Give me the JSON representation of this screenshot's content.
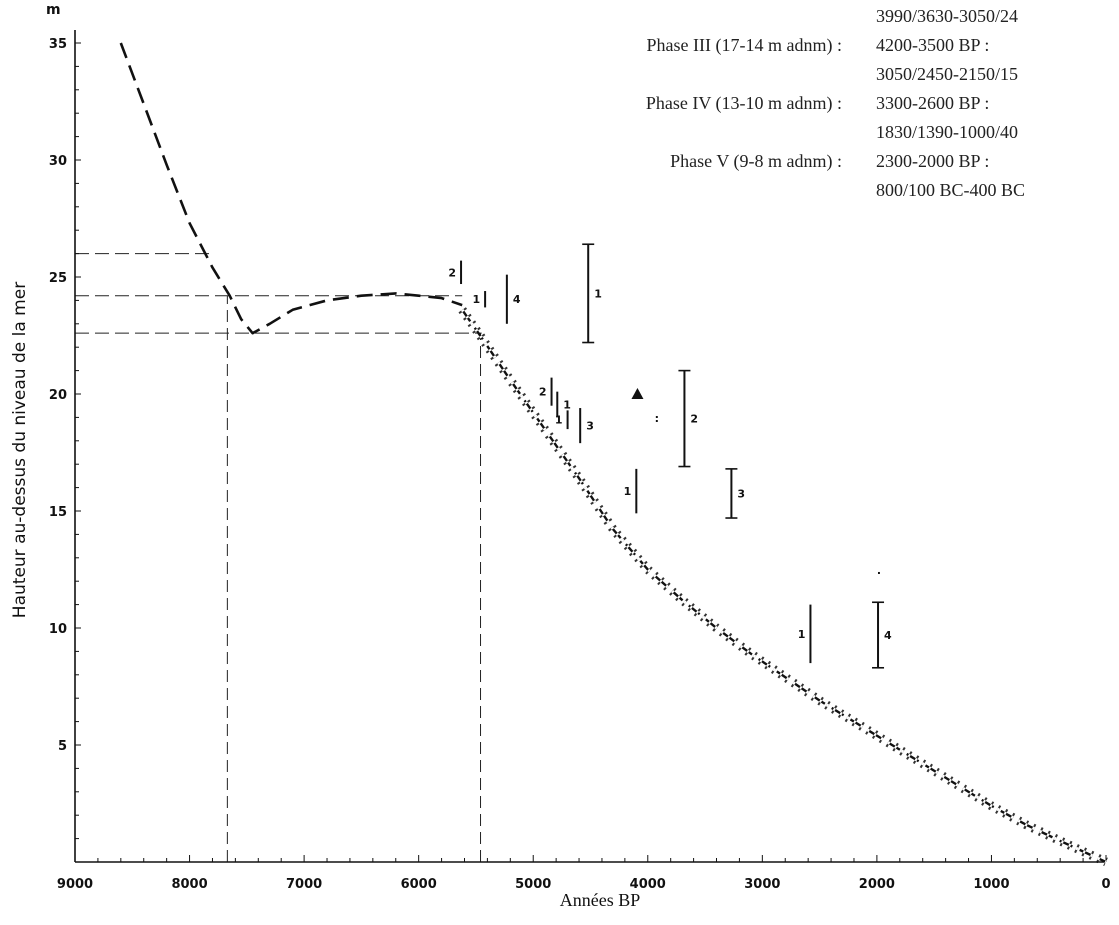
{
  "chart_data": {
    "type": "line",
    "title": "",
    "xlabel": "Années BP",
    "ylabel": "Hauteur au-dessus du niveau de la mer",
    "y_unit": "m",
    "xlim": [
      9000,
      0
    ],
    "ylim": [
      0,
      36
    ],
    "x_ticks": [
      9000,
      8000,
      7000,
      6000,
      5000,
      4000,
      3000,
      2000,
      1000,
      0
    ],
    "y_ticks": [
      5,
      10,
      15,
      20,
      25,
      30,
      35
    ],
    "grid": false,
    "series": [
      {
        "style": "dashed",
        "points": [
          [
            8600,
            35
          ],
          [
            8400,
            32.4
          ],
          [
            8200,
            29.8
          ],
          [
            8000,
            27.3
          ],
          [
            7800,
            25.4
          ],
          [
            7650,
            24.2
          ],
          [
            7550,
            23.2
          ],
          [
            7450,
            22.6
          ],
          [
            7300,
            23
          ],
          [
            7100,
            23.6
          ],
          [
            6800,
            24
          ],
          [
            6500,
            24.2
          ],
          [
            6200,
            24.3
          ],
          [
            6000,
            24.2
          ],
          [
            5800,
            24.1
          ],
          [
            5620,
            23.8
          ]
        ]
      },
      {
        "style": "hatched-band",
        "points": [
          [
            5620,
            23.6
          ],
          [
            5450,
            22.4
          ],
          [
            5200,
            20.6
          ],
          [
            4900,
            18.5
          ],
          [
            4600,
            16.4
          ],
          [
            4300,
            14.2
          ],
          [
            4000,
            12.5
          ],
          [
            3700,
            11.2
          ],
          [
            3400,
            10
          ],
          [
            3100,
            8.9
          ],
          [
            2800,
            7.9
          ],
          [
            2500,
            6.9
          ],
          [
            2200,
            6
          ],
          [
            1900,
            5.1
          ],
          [
            1600,
            4.2
          ],
          [
            1300,
            3.3
          ],
          [
            1000,
            2.4
          ],
          [
            700,
            1.6
          ],
          [
            400,
            0.9
          ],
          [
            0,
            0
          ]
        ]
      }
    ],
    "reference_lines": {
      "horizontal_dashed": [
        {
          "y": 26,
          "x_from": 9000,
          "x_to": 7800
        },
        {
          "y": 24.2,
          "x_from": 9000,
          "x_to": 5620
        },
        {
          "y": 22.6,
          "x_from": 9000,
          "x_to": 5450
        }
      ],
      "vertical_dashed": [
        {
          "x": 7670,
          "y_from": 0,
          "y_to": 24.2
        },
        {
          "x": 5460,
          "y_from": 0,
          "y_to": 22.6
        }
      ]
    },
    "range_markers": [
      {
        "label": "2",
        "x": 5630,
        "y_low": 24.7,
        "y_high": 25.7,
        "capped": false,
        "label_side": "left"
      },
      {
        "label": "1",
        "x": 5420,
        "y_low": 23.7,
        "y_high": 24.4,
        "capped": false,
        "label_side": "left"
      },
      {
        "label": "4",
        "x": 5230,
        "y_low": 23.0,
        "y_high": 25.1,
        "capped": false,
        "label_side": "right"
      },
      {
        "label": "1",
        "x": 4520,
        "y_low": 22.2,
        "y_high": 26.4,
        "capped": true,
        "label_side": "right"
      },
      {
        "label": "2",
        "x": 4840,
        "y_low": 19.5,
        "y_high": 20.7,
        "capped": false,
        "label_side": "left"
      },
      {
        "label": "1",
        "x": 4790,
        "y_low": 19.0,
        "y_high": 20.1,
        "capped": false,
        "label_side": "right"
      },
      {
        "label": "1",
        "x": 4700,
        "y_low": 18.5,
        "y_high": 19.3,
        "capped": false,
        "label_side": "left"
      },
      {
        "label": "3",
        "x": 4590,
        "y_low": 17.9,
        "y_high": 19.4,
        "capped": false,
        "label_side": "right"
      },
      {
        "label": "2",
        "x": 3680,
        "y_low": 16.9,
        "y_high": 21.0,
        "capped": true,
        "label_side": "right"
      },
      {
        "label": "1",
        "x": 4100,
        "y_low": 14.9,
        "y_high": 16.8,
        "capped": false,
        "label_side": "left"
      },
      {
        "label": "3",
        "x": 3270,
        "y_low": 14.7,
        "y_high": 16.8,
        "capped": true,
        "label_side": "right"
      },
      {
        "label": "1",
        "x": 2580,
        "y_low": 8.5,
        "y_high": 11.0,
        "capped": false,
        "label_side": "left"
      },
      {
        "label": "4",
        "x": 1990,
        "y_low": 8.3,
        "y_high": 11.1,
        "capped": true,
        "label_side": "right"
      }
    ],
    "triangle_markers": [
      {
        "x": 4090,
        "y": 20.0
      }
    ],
    "annotations": [
      {
        "x": 3940,
        "y": 18.8,
        "text": ":"
      },
      {
        "x": 2000,
        "y": 12.2,
        "text": "·"
      }
    ],
    "legend_lines": [
      {
        "phase": "",
        "values": "3990/3630-3050/24"
      },
      {
        "phase": "Phase III (17-14 m adnm) :",
        "values": "4200-3500 BP :"
      },
      {
        "phase": "",
        "values": "3050/2450-2150/15"
      },
      {
        "phase": "Phase IV (13-10 m adnm) :",
        "values": "3300-2600 BP :"
      },
      {
        "phase": "",
        "values": "1830/1390-1000/40"
      },
      {
        "phase": "Phase V (9-8 m adnm) :",
        "values": "2300-2000 BP :"
      },
      {
        "phase": "",
        "values": "800/100 BC-400 BC"
      }
    ]
  }
}
